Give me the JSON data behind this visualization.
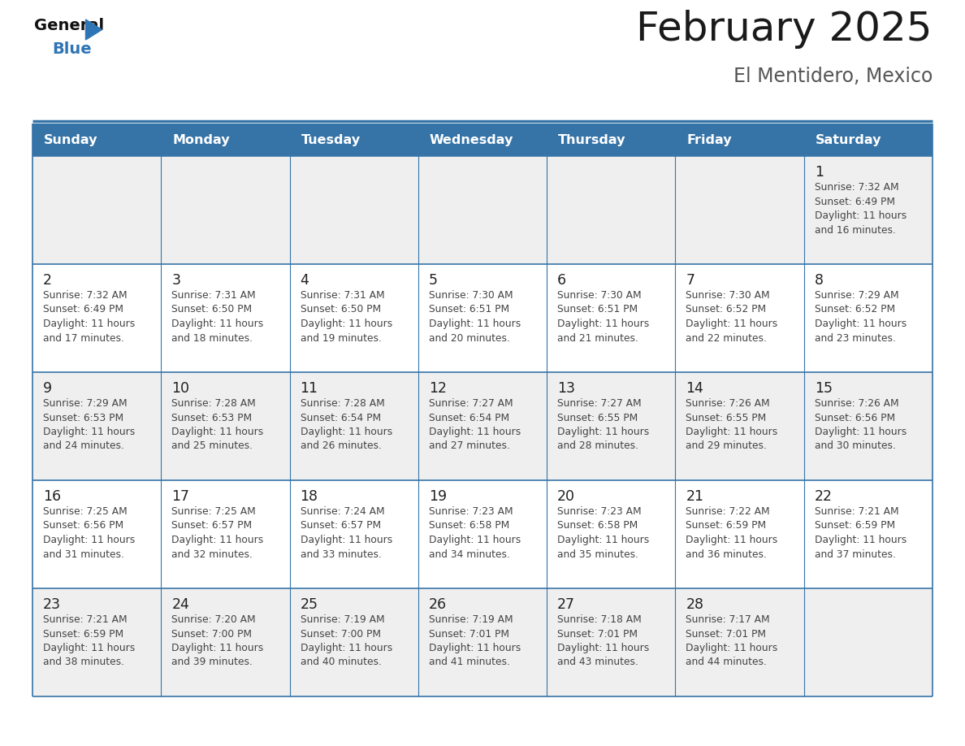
{
  "title": "February 2025",
  "subtitle": "El Mentidero, Mexico",
  "days_of_week": [
    "Sunday",
    "Monday",
    "Tuesday",
    "Wednesday",
    "Thursday",
    "Friday",
    "Saturday"
  ],
  "header_bg": "#3674a8",
  "header_text": "#FFFFFF",
  "cell_bg_light": "#FFFFFF",
  "cell_bg_gray": "#EFEFEF",
  "row_sep_color": "#3674a8",
  "col_sep_color": "#3674a8",
  "text_color": "#444444",
  "day_num_color": "#222222",
  "title_color": "#1a1a1a",
  "subtitle_color": "#555555",
  "logo_general_color": "#111111",
  "logo_blue_color": "#2E75B6",
  "calendar_data": [
    [
      null,
      null,
      null,
      null,
      null,
      null,
      {
        "day": 1,
        "sunrise": "7:32 AM",
        "sunset": "6:49 PM",
        "daylight": "11 hours and 16 minutes."
      }
    ],
    [
      {
        "day": 2,
        "sunrise": "7:32 AM",
        "sunset": "6:49 PM",
        "daylight": "11 hours and 17 minutes."
      },
      {
        "day": 3,
        "sunrise": "7:31 AM",
        "sunset": "6:50 PM",
        "daylight": "11 hours and 18 minutes."
      },
      {
        "day": 4,
        "sunrise": "7:31 AM",
        "sunset": "6:50 PM",
        "daylight": "11 hours and 19 minutes."
      },
      {
        "day": 5,
        "sunrise": "7:30 AM",
        "sunset": "6:51 PM",
        "daylight": "11 hours and 20 minutes."
      },
      {
        "day": 6,
        "sunrise": "7:30 AM",
        "sunset": "6:51 PM",
        "daylight": "11 hours and 21 minutes."
      },
      {
        "day": 7,
        "sunrise": "7:30 AM",
        "sunset": "6:52 PM",
        "daylight": "11 hours and 22 minutes."
      },
      {
        "day": 8,
        "sunrise": "7:29 AM",
        "sunset": "6:52 PM",
        "daylight": "11 hours and 23 minutes."
      }
    ],
    [
      {
        "day": 9,
        "sunrise": "7:29 AM",
        "sunset": "6:53 PM",
        "daylight": "11 hours and 24 minutes."
      },
      {
        "day": 10,
        "sunrise": "7:28 AM",
        "sunset": "6:53 PM",
        "daylight": "11 hours and 25 minutes."
      },
      {
        "day": 11,
        "sunrise": "7:28 AM",
        "sunset": "6:54 PM",
        "daylight": "11 hours and 26 minutes."
      },
      {
        "day": 12,
        "sunrise": "7:27 AM",
        "sunset": "6:54 PM",
        "daylight": "11 hours and 27 minutes."
      },
      {
        "day": 13,
        "sunrise": "7:27 AM",
        "sunset": "6:55 PM",
        "daylight": "11 hours and 28 minutes."
      },
      {
        "day": 14,
        "sunrise": "7:26 AM",
        "sunset": "6:55 PM",
        "daylight": "11 hours and 29 minutes."
      },
      {
        "day": 15,
        "sunrise": "7:26 AM",
        "sunset": "6:56 PM",
        "daylight": "11 hours and 30 minutes."
      }
    ],
    [
      {
        "day": 16,
        "sunrise": "7:25 AM",
        "sunset": "6:56 PM",
        "daylight": "11 hours and 31 minutes."
      },
      {
        "day": 17,
        "sunrise": "7:25 AM",
        "sunset": "6:57 PM",
        "daylight": "11 hours and 32 minutes."
      },
      {
        "day": 18,
        "sunrise": "7:24 AM",
        "sunset": "6:57 PM",
        "daylight": "11 hours and 33 minutes."
      },
      {
        "day": 19,
        "sunrise": "7:23 AM",
        "sunset": "6:58 PM",
        "daylight": "11 hours and 34 minutes."
      },
      {
        "day": 20,
        "sunrise": "7:23 AM",
        "sunset": "6:58 PM",
        "daylight": "11 hours and 35 minutes."
      },
      {
        "day": 21,
        "sunrise": "7:22 AM",
        "sunset": "6:59 PM",
        "daylight": "11 hours and 36 minutes."
      },
      {
        "day": 22,
        "sunrise": "7:21 AM",
        "sunset": "6:59 PM",
        "daylight": "11 hours and 37 minutes."
      }
    ],
    [
      {
        "day": 23,
        "sunrise": "7:21 AM",
        "sunset": "6:59 PM",
        "daylight": "11 hours and 38 minutes."
      },
      {
        "day": 24,
        "sunrise": "7:20 AM",
        "sunset": "7:00 PM",
        "daylight": "11 hours and 39 minutes."
      },
      {
        "day": 25,
        "sunrise": "7:19 AM",
        "sunset": "7:00 PM",
        "daylight": "11 hours and 40 minutes."
      },
      {
        "day": 26,
        "sunrise": "7:19 AM",
        "sunset": "7:01 PM",
        "daylight": "11 hours and 41 minutes."
      },
      {
        "day": 27,
        "sunrise": "7:18 AM",
        "sunset": "7:01 PM",
        "daylight": "11 hours and 43 minutes."
      },
      {
        "day": 28,
        "sunrise": "7:17 AM",
        "sunset": "7:01 PM",
        "daylight": "11 hours and 44 minutes."
      },
      null
    ]
  ],
  "num_rows": 5,
  "num_cols": 7
}
